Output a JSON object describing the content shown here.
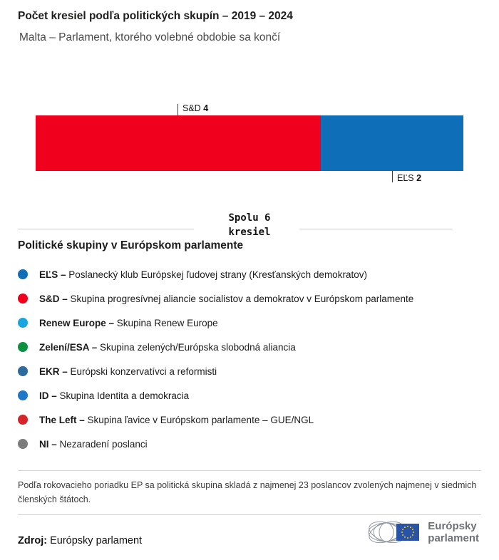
{
  "header": {
    "title": "Počet kresiel podľa politických skupín – 2019 – 2024",
    "subtitle": "Malta – Parlament, ktorého volebné obdobie sa končí"
  },
  "chart_data": {
    "type": "bar",
    "variant": "horizontal-stacked",
    "title": "Počet kresiel podľa politických skupín – 2019 – 2024",
    "subtitle": "Malta – Parlament, ktorého volebné obdobie sa končí",
    "total_seats": 6,
    "total_label": "Spolu 6\nkresiel",
    "series": [
      {
        "name": "S&D",
        "value": 4,
        "color": "#f0001c",
        "label_position": "above"
      },
      {
        "name": "EĽS",
        "value": 2,
        "color": "#0e6eb8",
        "label_position": "below"
      }
    ]
  },
  "legend": {
    "heading": "Politické skupiny v Európskom parlamente",
    "items": [
      {
        "name": "EĽS –",
        "description": "Poslanecký klub Európskej ľudovej strany (Kresťanských demokratov)",
        "color": "#0e6eb8"
      },
      {
        "name": "S&D –",
        "description": "Skupina progresívnej aliancie socialistov a demokratov v Európskom parlamente",
        "color": "#f0001c"
      },
      {
        "name": "Renew Europe –",
        "description": "Skupina Renew Europe",
        "color": "#19a6e0"
      },
      {
        "name": "Zelení/ESA –",
        "description": "Skupina zelených/Európska slobodná aliancia",
        "color": "#0c9140"
      },
      {
        "name": "EKR –",
        "description": "Európski konzervatívci a reformisti",
        "color": "#2c6b9e"
      },
      {
        "name": "ID –",
        "description": "Skupina Identita a demokracia",
        "color": "#1d78c8"
      },
      {
        "name": "The Left –",
        "description": "Skupina ľavice v Európskom parlamente – GUE/NGL",
        "color": "#d7232a"
      },
      {
        "name": "NI –",
        "description": "Nezaradení poslanci",
        "color": "#7c7c7c"
      }
    ]
  },
  "footnote": "Podľa rokovacieho poriadku EP sa politická skupina skladá z najmenej 23 poslancov zvolených najmenej v siedmich členských štátoch.",
  "source": {
    "label": "Zdroj:",
    "value": "Európsky parlament"
  },
  "logo": {
    "line1": "Európsky",
    "line2": "parlament"
  }
}
